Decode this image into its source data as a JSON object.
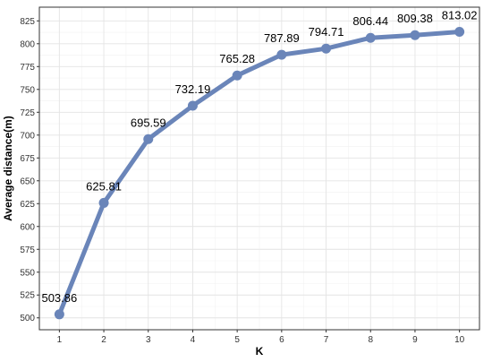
{
  "chart_data": {
    "type": "line",
    "title": "",
    "xlabel": "K",
    "ylabel": "Average distance(m)",
    "x": [
      1,
      2,
      3,
      4,
      5,
      6,
      7,
      8,
      9,
      10
    ],
    "series": [
      {
        "values": [
          503.86,
          625.81,
          695.59,
          732.19,
          765.28,
          787.89,
          794.71,
          806.44,
          809.38,
          813.02
        ],
        "labels": [
          "503.86",
          "625.81",
          "695.59",
          "732.19",
          "765.28",
          "787.89",
          "794.71",
          "806.44",
          "809.38",
          "813.02"
        ],
        "color": "#6a85b9"
      }
    ],
    "xticks": [
      "1",
      "2",
      "3",
      "4",
      "5",
      "6",
      "7",
      "8",
      "9",
      "10"
    ],
    "yticks": [
      "500",
      "525",
      "550",
      "575",
      "600",
      "625",
      "650",
      "675",
      "700",
      "725",
      "750",
      "775",
      "800",
      "825"
    ],
    "ylim": [
      487,
      840
    ],
    "xlim": [
      0.55,
      10.45
    ],
    "grid": true,
    "legend": "none"
  }
}
